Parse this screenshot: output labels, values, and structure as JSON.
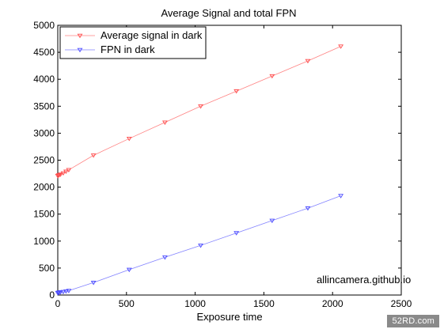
{
  "chart_data": {
    "type": "line",
    "title": "Average Signal and total FPN",
    "xlabel": "Exposure time",
    "ylabel": "",
    "xlim": [
      0,
      2500
    ],
    "ylim": [
      0,
      5000
    ],
    "xticks": [
      0,
      500,
      1000,
      1500,
      2000,
      2500
    ],
    "yticks": [
      0,
      500,
      1000,
      1500,
      2000,
      2500,
      3000,
      3500,
      4000,
      4500,
      5000
    ],
    "grid": false,
    "legend_position": "top-left",
    "annotation": "allincamera.github.io",
    "series": [
      {
        "name": "Average signal in dark",
        "color": "#ff4d4d",
        "marker": "triangle-down",
        "x": [
          0,
          5,
          10,
          20,
          40,
          60,
          80,
          260,
          520,
          780,
          1040,
          1300,
          1560,
          1820,
          2060
        ],
        "y": [
          2210,
          2220,
          2225,
          2235,
          2260,
          2290,
          2320,
          2590,
          2900,
          3200,
          3500,
          3780,
          4060,
          4340,
          4610
        ]
      },
      {
        "name": "FPN in dark",
        "color": "#4d4dff",
        "marker": "triangle-down",
        "x": [
          0,
          5,
          10,
          20,
          40,
          60,
          80,
          260,
          520,
          780,
          1040,
          1300,
          1560,
          1820,
          2060
        ],
        "y": [
          40,
          45,
          50,
          55,
          60,
          70,
          80,
          230,
          470,
          700,
          920,
          1150,
          1380,
          1610,
          1840
        ]
      }
    ]
  },
  "watermark": "52RD.com",
  "colors": {
    "axis": "#000000",
    "background": "#ffffff"
  }
}
